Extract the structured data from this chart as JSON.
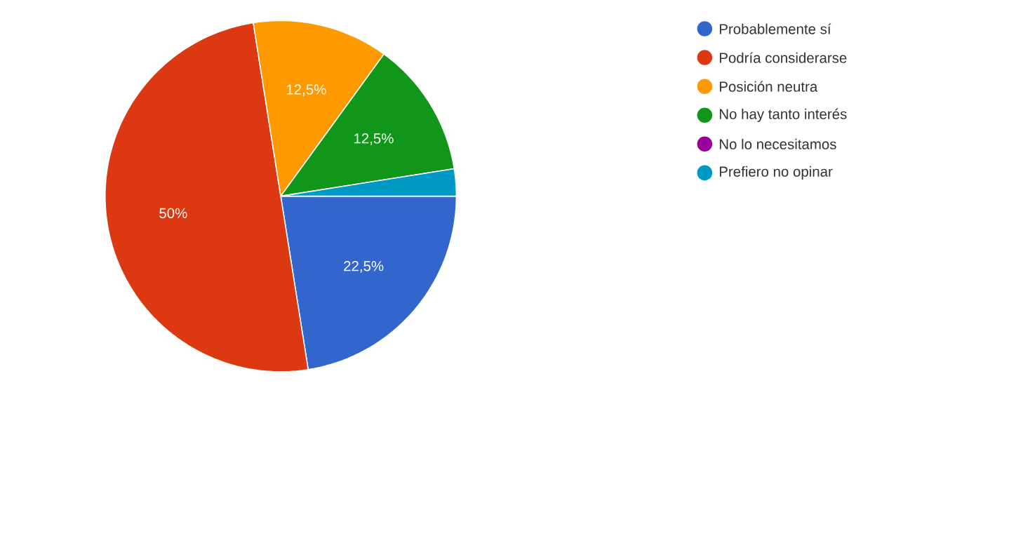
{
  "chart_data": {
    "type": "pie",
    "categories": [
      "Probablemente sí",
      "Podría considerarse",
      "Posición neutra",
      "No hay tanto interés",
      "No lo necesitamos",
      "Prefiero no opinar"
    ],
    "values": [
      22.5,
      50,
      12.5,
      12.5,
      0,
      2.5
    ],
    "colors": [
      "#3366cc",
      "#dc3912",
      "#ff9900",
      "#109618",
      "#990099",
      "#0099c6"
    ],
    "value_labels": [
      "22,5%",
      "50%",
      "12,5%",
      "12,5%",
      null,
      null
    ],
    "legend": "right"
  }
}
